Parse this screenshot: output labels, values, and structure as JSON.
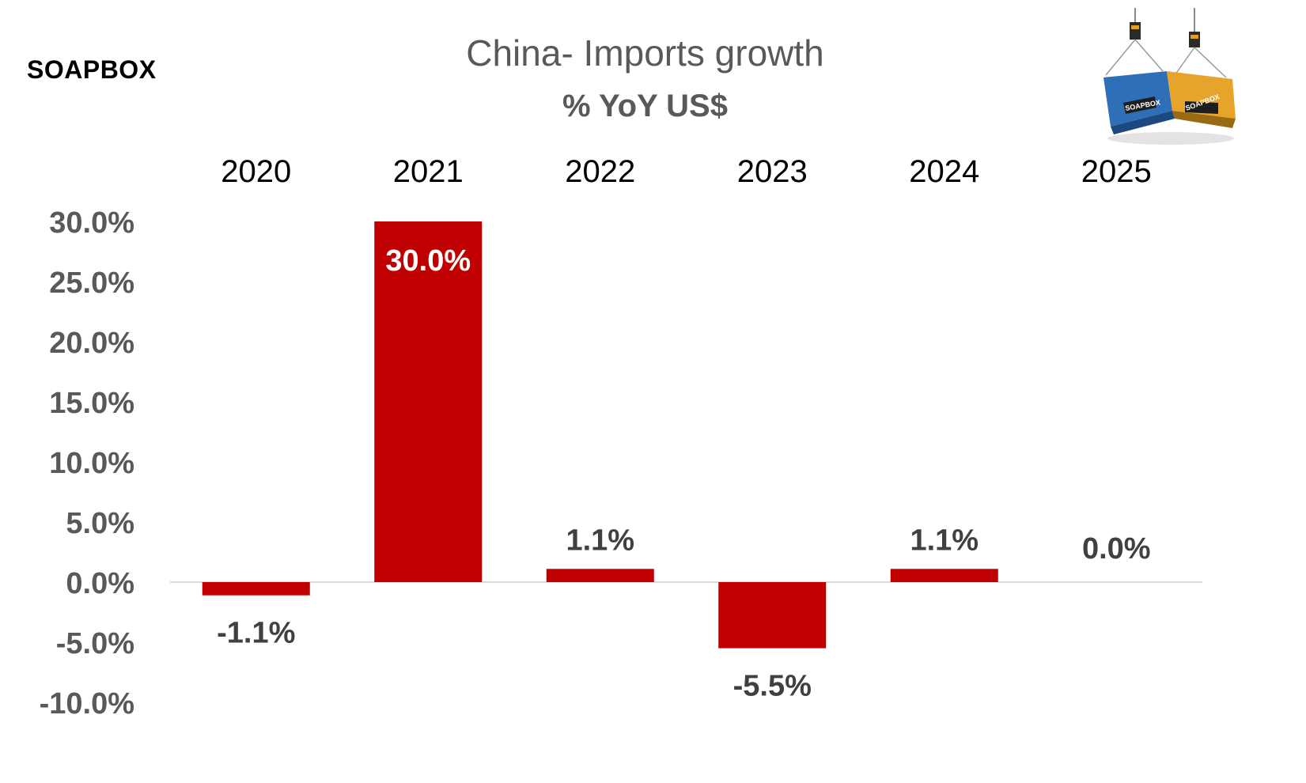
{
  "brand": "SOAPBOX",
  "colors": {
    "bar": "#C00000",
    "axis": "#595959",
    "zero_line": "#D9D9D9",
    "label_inside": "#FFFFFF",
    "label_outside": "#404040",
    "category": "#000000"
  },
  "chart_data": {
    "type": "bar",
    "title": "China- Imports growth",
    "subtitle": "% YoY US$",
    "xlabel": "",
    "ylabel": "",
    "categories": [
      "2020",
      "2021",
      "2022",
      "2023",
      "2024",
      "2025"
    ],
    "values": [
      -1.1,
      30.0,
      1.1,
      -5.5,
      1.1,
      0.0
    ],
    "data_labels": [
      "-1.1%",
      "30.0%",
      "1.1%",
      "-5.5%",
      "1.1%",
      "0.0%"
    ],
    "ylim": [
      -10,
      30
    ],
    "yticks": [
      30,
      25,
      20,
      15,
      10,
      5,
      0,
      -5,
      -10
    ],
    "ytick_labels": [
      "30.0%",
      "25.0%",
      "20.0%",
      "15.0%",
      "10.0%",
      "5.0%",
      "0.0%",
      "-5.0%",
      "-10.0%"
    ],
    "category_axis_position": "top",
    "grid": false,
    "legend": "none"
  },
  "logo": {
    "depiction": "two shipping containers hanging from crane hooks",
    "text_left": "SOAPBOX",
    "text_right": "SOAPBOX"
  }
}
